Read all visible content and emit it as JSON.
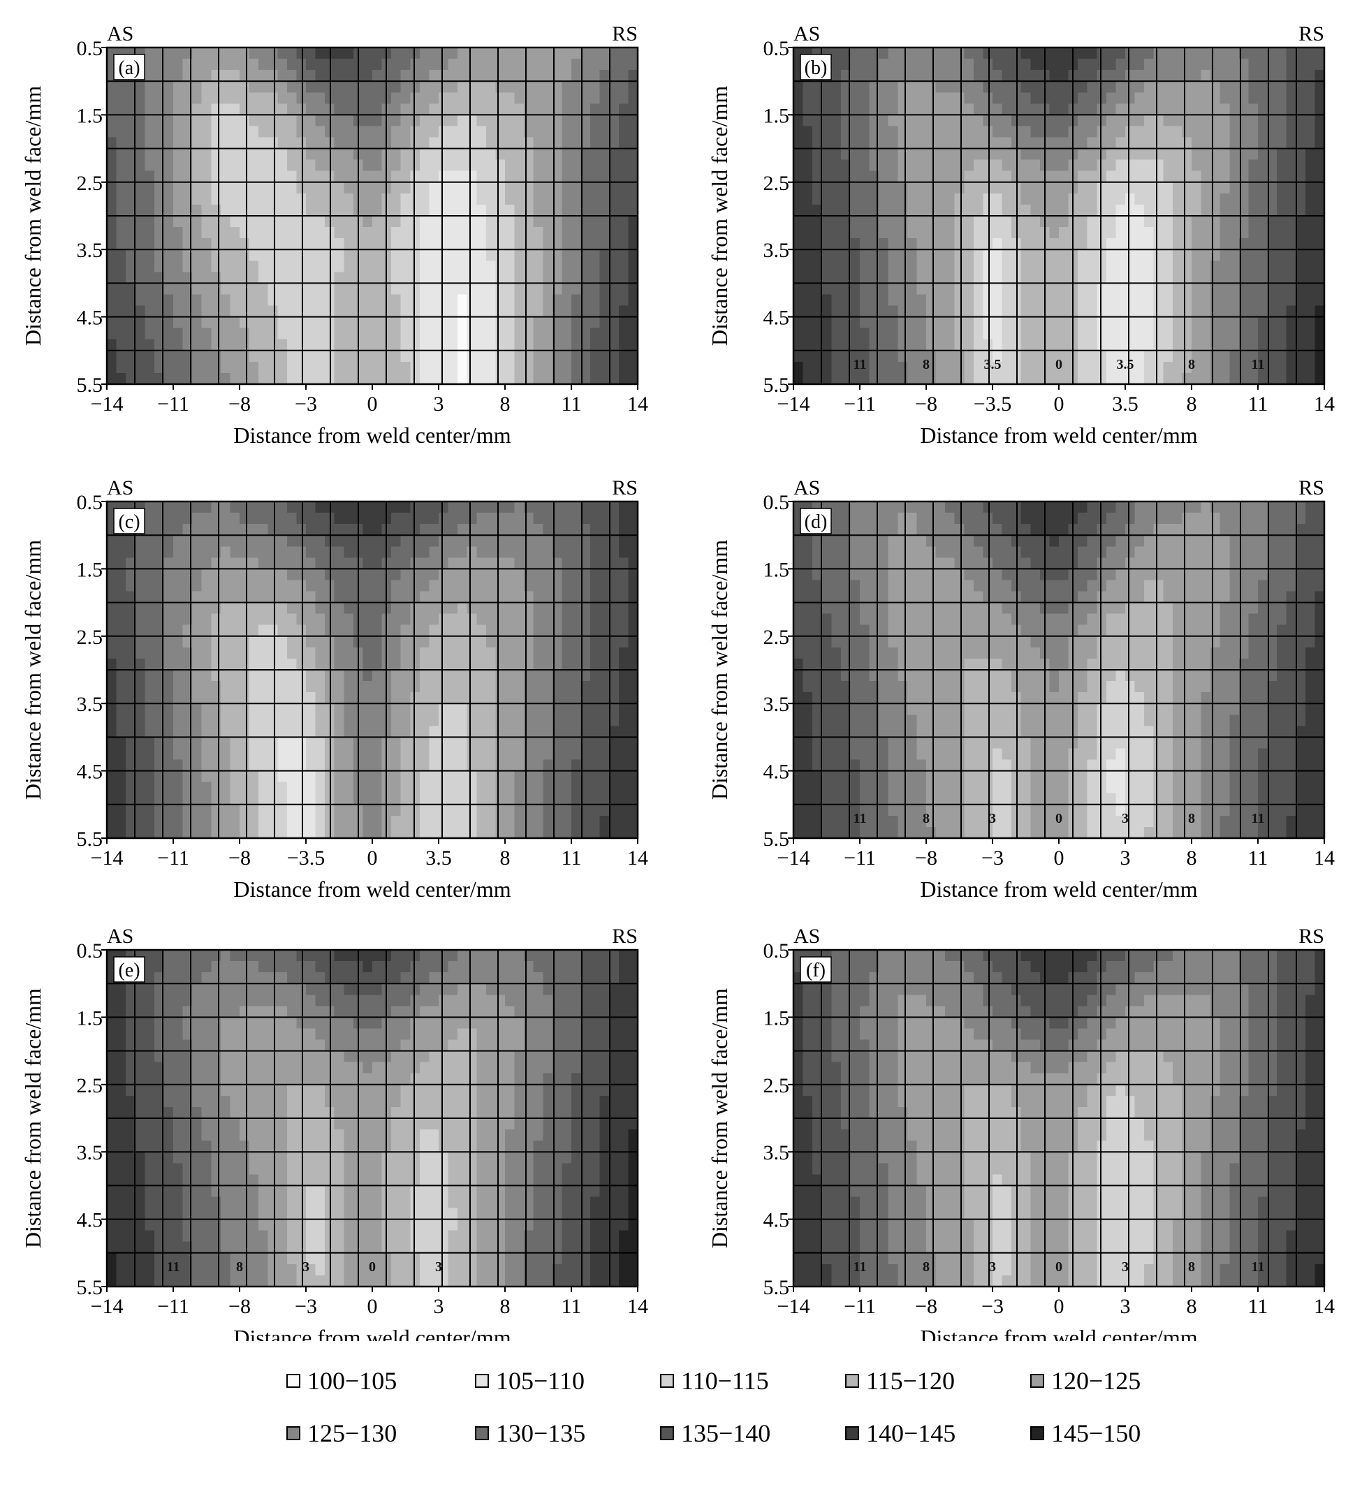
{
  "chart_data": [
    {
      "type": "heatmap",
      "panel_label": "(a)",
      "side_left": "AS",
      "side_right": "RS",
      "xlabel": "Distance from weld center/mm",
      "ylabel": "Distance from weld face/mm",
      "x_tick_labels": [
        "−14",
        "−11",
        "−8",
        "−3",
        "0",
        "3",
        "8",
        "11",
        "14"
      ],
      "y_tick_labels": [
        "0.5",
        "1.5",
        "2.5",
        "3.5",
        "4.5",
        "5.5"
      ],
      "xlim": [
        -14,
        14
      ],
      "ylim": [
        0.5,
        5.5
      ],
      "y_inverted": true,
      "grid": true,
      "contour_labels": [],
      "x": [
        -14,
        -11,
        -8,
        -5,
        -3,
        -1.5,
        0,
        1.5,
        3,
        5,
        8,
        11,
        14
      ],
      "y": [
        0.5,
        1.5,
        2.5,
        3.5,
        4.5,
        5.5
      ],
      "z": [
        [
          135,
          128,
          122,
          130,
          142,
          142,
          138,
          135,
          130,
          125,
          122,
          125,
          135
        ],
        [
          135,
          127,
          113,
          117,
          125,
          130,
          132,
          125,
          118,
          115,
          120,
          128,
          138
        ],
        [
          137,
          128,
          112,
          112,
          118,
          120,
          125,
          117,
          110,
          108,
          118,
          130,
          140
        ],
        [
          137,
          128,
          118,
          112,
          112,
          115,
          118,
          113,
          108,
          106,
          116,
          130,
          142
        ],
        [
          140,
          132,
          122,
          115,
          110,
          117,
          118,
          115,
          108,
          104,
          116,
          132,
          143
        ],
        [
          142,
          135,
          127,
          117,
          110,
          118,
          120,
          117,
          108,
          104,
          117,
          133,
          145
        ]
      ]
    },
    {
      "type": "heatmap",
      "panel_label": "(b)",
      "side_left": "AS",
      "side_right": "RS",
      "xlabel": "Distance from weld center/mm",
      "ylabel": "Distance from weld face/mm",
      "x_tick_labels": [
        "−14",
        "−11",
        "−8",
        "−3.5",
        "0",
        "3.5",
        "8",
        "11",
        "14"
      ],
      "y_tick_labels": [
        "0.5",
        "1.5",
        "2.5",
        "3.5",
        "4.5",
        "5.5"
      ],
      "xlim": [
        -14,
        14
      ],
      "ylim": [
        0.5,
        5.5
      ],
      "y_inverted": true,
      "grid": true,
      "contour_labels": [
        "11",
        "8",
        "3.5",
        "0",
        "3.5",
        "8",
        "11"
      ],
      "x": [
        -14,
        -11,
        -8,
        -5,
        -3.5,
        -1.5,
        0,
        1.5,
        3.5,
        5,
        8,
        11,
        14
      ],
      "y": [
        0.5,
        1.5,
        2.5,
        3.5,
        4.5,
        5.5
      ],
      "z": [
        [
          142,
          135,
          127,
          130,
          137,
          142,
          145,
          142,
          137,
          130,
          127,
          133,
          140
        ],
        [
          142,
          133,
          122,
          123,
          128,
          133,
          135,
          130,
          122,
          120,
          122,
          132,
          142
        ],
        [
          143,
          135,
          124,
          120,
          115,
          122,
          123,
          118,
          110,
          112,
          122,
          133,
          143
        ],
        [
          144,
          136,
          126,
          118,
          108,
          118,
          120,
          114,
          106,
          110,
          124,
          135,
          145
        ],
        [
          145,
          137,
          128,
          118,
          107,
          116,
          118,
          112,
          104,
          110,
          125,
          136,
          146
        ],
        [
          146,
          138,
          130,
          120,
          110,
          118,
          120,
          114,
          106,
          112,
          126,
          137,
          147
        ]
      ]
    },
    {
      "type": "heatmap",
      "panel_label": "(c)",
      "side_left": "AS",
      "side_right": "RS",
      "xlabel": "Distance from weld center/mm",
      "ylabel": "Distance from weld face/mm",
      "x_tick_labels": [
        "−14",
        "−11",
        "−8",
        "−3.5",
        "0",
        "3.5",
        "8",
        "11",
        "14"
      ],
      "y_tick_labels": [
        "0.5",
        "1.5",
        "2.5",
        "3.5",
        "4.5",
        "5.5"
      ],
      "xlim": [
        -14,
        14
      ],
      "ylim": [
        0.5,
        5.5
      ],
      "y_inverted": true,
      "grid": true,
      "contour_labels": [],
      "x": [
        -14,
        -11,
        -8,
        -5,
        -3.5,
        -1.5,
        0,
        1.5,
        3.5,
        5,
        8,
        11,
        14
      ],
      "y": [
        0.5,
        1.5,
        2.5,
        3.5,
        4.5,
        5.5
      ],
      "z": [
        [
          140,
          133,
          130,
          135,
          140,
          143,
          145,
          142,
          138,
          133,
          130,
          135,
          143
        ],
        [
          138,
          130,
          123,
          125,
          127,
          133,
          135,
          130,
          125,
          122,
          125,
          133,
          142
        ],
        [
          140,
          130,
          117,
          113,
          120,
          128,
          133,
          125,
          118,
          118,
          123,
          133,
          142
        ],
        [
          142,
          132,
          120,
          110,
          112,
          125,
          130,
          122,
          115,
          115,
          125,
          135,
          143
        ],
        [
          143,
          133,
          122,
          110,
          108,
          123,
          128,
          120,
          112,
          114,
          126,
          136,
          144
        ],
        [
          144,
          134,
          124,
          112,
          106,
          122,
          127,
          118,
          110,
          113,
          127,
          137,
          145
        ]
      ]
    },
    {
      "type": "heatmap",
      "panel_label": "(d)",
      "side_left": "AS",
      "side_right": "RS",
      "xlabel": "Distance from weld center/mm",
      "ylabel": "Distance from weld face/mm",
      "x_tick_labels": [
        "−14",
        "−11",
        "−8",
        "−3",
        "0",
        "3",
        "8",
        "11",
        "14"
      ],
      "y_tick_labels": [
        "0.5",
        "1.5",
        "2.5",
        "3.5",
        "4.5",
        "5.5"
      ],
      "xlim": [
        -14,
        14
      ],
      "ylim": [
        0.5,
        5.5
      ],
      "y_inverted": true,
      "grid": true,
      "contour_labels": [
        "11",
        "8",
        "3",
        "0",
        "3",
        "8",
        "11"
      ],
      "x": [
        -14,
        -11,
        -8,
        -5,
        -3,
        -1.5,
        0,
        1.5,
        3,
        5,
        8,
        11,
        14
      ],
      "y": [
        0.5,
        1.5,
        2.5,
        3.5,
        4.5,
        5.5
      ],
      "z": [
        [
          138,
          130,
          125,
          133,
          138,
          143,
          145,
          140,
          135,
          128,
          125,
          130,
          138
        ],
        [
          138,
          130,
          122,
          125,
          130,
          135,
          137,
          132,
          125,
          120,
          122,
          130,
          140
        ],
        [
          140,
          133,
          122,
          120,
          122,
          125,
          127,
          122,
          117,
          118,
          124,
          133,
          142
        ],
        [
          142,
          135,
          125,
          120,
          117,
          122,
          125,
          118,
          112,
          116,
          126,
          135,
          143
        ],
        [
          143,
          136,
          127,
          120,
          113,
          120,
          122,
          116,
          108,
          115,
          127,
          136,
          144
        ],
        [
          144,
          137,
          128,
          121,
          113,
          120,
          122,
          116,
          110,
          116,
          128,
          137,
          145
        ]
      ]
    },
    {
      "type": "heatmap",
      "panel_label": "(e)",
      "side_left": "AS",
      "side_right": "RS",
      "xlabel": "Distance from weld center/mm",
      "ylabel": "Distance from weld face/mm",
      "x_tick_labels": [
        "−14",
        "−11",
        "−8",
        "−3",
        "0",
        "3",
        "8",
        "11",
        "14"
      ],
      "y_tick_labels": [
        "0.5",
        "1.5",
        "2.5",
        "3.5",
        "4.5",
        "5.5"
      ],
      "xlim": [
        -14,
        14
      ],
      "ylim": [
        0.5,
        5.5
      ],
      "y_inverted": true,
      "grid": true,
      "contour_labels": [
        "11",
        "8",
        "3",
        "0",
        "3"
      ],
      "x": [
        -14,
        -11,
        -8,
        -5,
        -3,
        -1.5,
        0,
        1.5,
        3,
        5,
        8,
        11,
        14
      ],
      "y": [
        0.5,
        1.5,
        2.5,
        3.5,
        4.5,
        5.5
      ],
      "z": [
        [
          142,
          135,
          130,
          133,
          138,
          142,
          143,
          140,
          135,
          130,
          130,
          135,
          143
        ],
        [
          143,
          133,
          125,
          123,
          127,
          130,
          132,
          128,
          123,
          120,
          125,
          135,
          144
        ],
        [
          143,
          135,
          125,
          120,
          120,
          122,
          123,
          120,
          117,
          118,
          126,
          136,
          145
        ],
        [
          144,
          137,
          128,
          122,
          115,
          120,
          122,
          118,
          113,
          118,
          128,
          137,
          146
        ],
        [
          145,
          138,
          130,
          123,
          113,
          120,
          121,
          118,
          111,
          117,
          129,
          138,
          147
        ],
        [
          146,
          139,
          131,
          124,
          114,
          121,
          122,
          119,
          112,
          118,
          130,
          139,
          148
        ]
      ]
    },
    {
      "type": "heatmap",
      "panel_label": "(f)",
      "side_left": "AS",
      "side_right": "RS",
      "xlabel": "Distance from weld center/mm",
      "ylabel": "Distance from weld face/mm",
      "x_tick_labels": [
        "−14",
        "−11",
        "−8",
        "−3",
        "0",
        "3",
        "8",
        "11",
        "14"
      ],
      "y_tick_labels": [
        "0.5",
        "1.5",
        "2.5",
        "3.5",
        "4.5",
        "5.5"
      ],
      "xlim": [
        -14,
        14
      ],
      "ylim": [
        0.5,
        5.5
      ],
      "y_inverted": true,
      "grid": true,
      "contour_labels": [
        "11",
        "8",
        "3",
        "0",
        "3",
        "8",
        "11"
      ],
      "x": [
        -14,
        -11,
        -8,
        -5,
        -3,
        -1.5,
        0,
        1.5,
        3,
        5,
        8,
        11,
        14
      ],
      "y": [
        0.5,
        1.5,
        2.5,
        3.5,
        4.5,
        5.5
      ],
      "z": [
        [
          140,
          133,
          128,
          132,
          138,
          142,
          145,
          142,
          137,
          132,
          128,
          133,
          141
        ],
        [
          142,
          132,
          123,
          125,
          130,
          135,
          137,
          132,
          125,
          122,
          124,
          133,
          143
        ],
        [
          142,
          133,
          123,
          120,
          120,
          122,
          123,
          120,
          115,
          117,
          124,
          134,
          143
        ],
        [
          143,
          135,
          126,
          120,
          115,
          121,
          122,
          118,
          111,
          115,
          126,
          135,
          144
        ],
        [
          144,
          136,
          127,
          121,
          113,
          120,
          121,
          117,
          110,
          115,
          127,
          136,
          145
        ],
        [
          145,
          137,
          128,
          122,
          114,
          121,
          122,
          118,
          111,
          116,
          128,
          137,
          146
        ]
      ]
    }
  ],
  "legend": {
    "items": [
      {
        "label": "100−105",
        "min": 100,
        "max": 105,
        "color": "#fafafa"
      },
      {
        "label": "105−110",
        "min": 105,
        "max": 110,
        "color": "#e6e6e6"
      },
      {
        "label": "110−115",
        "min": 110,
        "max": 115,
        "color": "#d2d2d2"
      },
      {
        "label": "115−120",
        "min": 115,
        "max": 120,
        "color": "#b6b6b6"
      },
      {
        "label": "120−125",
        "min": 120,
        "max": 125,
        "color": "#9e9e9e"
      },
      {
        "label": "125−130",
        "min": 125,
        "max": 130,
        "color": "#858585"
      },
      {
        "label": "130−135",
        "min": 130,
        "max": 135,
        "color": "#6c6c6c"
      },
      {
        "label": "135−140",
        "min": 135,
        "max": 140,
        "color": "#555555"
      },
      {
        "label": "140−145",
        "min": 140,
        "max": 145,
        "color": "#3c3c3c"
      },
      {
        "label": "145−150",
        "min": 145,
        "max": 150,
        "color": "#222222"
      }
    ]
  }
}
